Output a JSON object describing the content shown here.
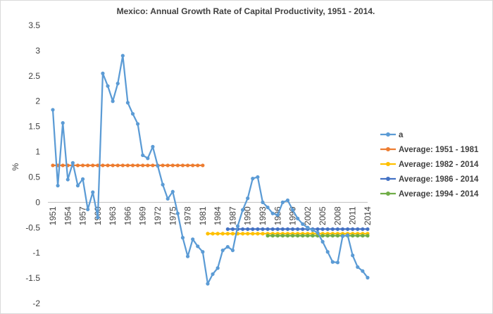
{
  "chart_data": {
    "type": "line",
    "title": "Mexico: Annual Growth Rate of Capital Productivity, 1951 - 2014.",
    "xlabel": "",
    "ylabel": "%",
    "ylim": [
      -2,
      3.5
    ],
    "yticks": [
      3.5,
      3,
      2.5,
      2,
      1.5,
      1,
      0.5,
      0,
      -0.5,
      -1,
      -1.5,
      -2
    ],
    "ytick_labels": [
      "3.5",
      "3",
      "2.5",
      "2",
      "1.5",
      "1",
      "0.5",
      "0",
      "-0.5",
      "-1",
      "-1.5",
      "-2"
    ],
    "xrange": [
      1951,
      2014
    ],
    "xtick_labels": [
      "1951",
      "1954",
      "1957",
      "1960",
      "1963",
      "1966",
      "1969",
      "1972",
      "1975",
      "1978",
      "1981",
      "1984",
      "1987",
      "1990",
      "1993",
      "1996",
      "1999",
      "2002",
      "2005",
      "2008",
      "2011",
      "2014"
    ],
    "grid": false,
    "legend_position": "right",
    "series": [
      {
        "name": "a",
        "color": "#5b9bd5",
        "x": [
          1951,
          1952,
          1953,
          1954,
          1955,
          1956,
          1957,
          1958,
          1959,
          1960,
          1961,
          1962,
          1963,
          1964,
          1965,
          1966,
          1967,
          1968,
          1969,
          1970,
          1971,
          1972,
          1973,
          1974,
          1975,
          1976,
          1977,
          1978,
          1979,
          1980,
          1981,
          1982,
          1983,
          1984,
          1985,
          1986,
          1987,
          1988,
          1989,
          1990,
          1991,
          1992,
          1993,
          1994,
          1995,
          1996,
          1997,
          1998,
          1999,
          2000,
          2001,
          2002,
          2003,
          2004,
          2005,
          2006,
          2007,
          2008,
          2009,
          2010,
          2011,
          2012,
          2013,
          2014
        ],
        "values": [
          1.83,
          0.33,
          1.57,
          0.45,
          0.78,
          0.33,
          0.46,
          -0.14,
          0.2,
          -0.3,
          2.55,
          2.3,
          2.0,
          2.35,
          2.9,
          1.97,
          1.75,
          1.55,
          0.93,
          0.87,
          1.1,
          0.72,
          0.35,
          0.07,
          0.21,
          -0.22,
          -0.7,
          -1.07,
          -0.73,
          -0.87,
          -0.98,
          -1.61,
          -1.42,
          -1.3,
          -0.95,
          -0.88,
          -0.95,
          -0.47,
          -0.15,
          0.08,
          0.47,
          0.5,
          0.0,
          -0.1,
          -0.22,
          -0.25,
          0.0,
          0.04,
          -0.15,
          -0.32,
          -0.43,
          -0.5,
          -0.55,
          -0.6,
          -0.78,
          -0.98,
          -1.18,
          -1.19,
          -0.67,
          -0.65,
          -1.05,
          -1.28,
          -1.36,
          -1.49
        ]
      },
      {
        "name": "Average: 1951 - 1981",
        "color": "#ed7d31",
        "from": 1951,
        "to": 1981,
        "value": 0.73
      },
      {
        "name": "Average: 1982 - 2014",
        "color": "#ffc000",
        "from": 1982,
        "to": 2014,
        "value": -0.62
      },
      {
        "name": "Average: 1986 - 2014",
        "color": "#4472c4",
        "from": 1986,
        "to": 2014,
        "value": -0.53
      },
      {
        "name": "Average: 1994 - 2014",
        "color": "#70ad47",
        "from": 1994,
        "to": 2014,
        "value": -0.66
      }
    ]
  }
}
